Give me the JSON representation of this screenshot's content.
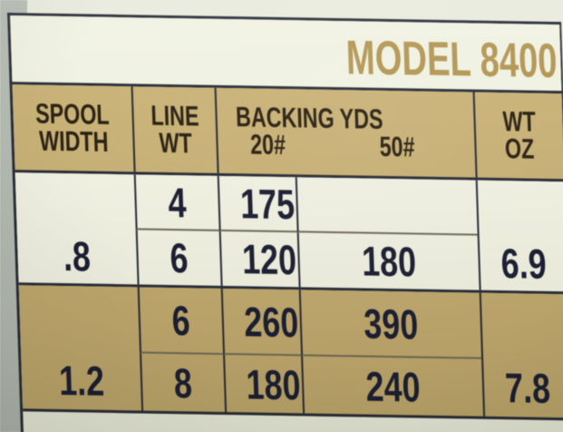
{
  "title": "MODEL 8400",
  "table": {
    "header": {
      "spool": [
        "SPOOL",
        "WIDTH"
      ],
      "line": [
        "LINE",
        "WT"
      ],
      "backing_title": "BACKING YDS",
      "backing_sub": [
        "20#",
        "50#"
      ],
      "wt": [
        "WT",
        "OZ"
      ]
    },
    "groups": [
      {
        "spool_width": ".8",
        "wt_oz": "6.9",
        "rows": [
          {
            "line_wt": "4",
            "backing_20": "175",
            "backing_50": ""
          },
          {
            "line_wt": "6",
            "backing_20": "120",
            "backing_50": "180"
          }
        ]
      },
      {
        "spool_width": "1.2",
        "wt_oz": "7.8",
        "rows": [
          {
            "line_wt": "6",
            "backing_20": "260",
            "backing_50": "390"
          },
          {
            "line_wt": "8",
            "backing_20": "180",
            "backing_50": "240"
          }
        ]
      }
    ]
  },
  "chart_data": {
    "type": "table",
    "title": "MODEL 8400",
    "columns": [
      "SPOOL WIDTH",
      "LINE WT",
      "BACKING YDS 20#",
      "BACKING YDS 50#",
      "WT OZ"
    ],
    "rows": [
      [
        ".8",
        "4",
        "175",
        "",
        "6.9"
      ],
      [
        ".8",
        "6",
        "120",
        "180",
        "6.9"
      ],
      [
        "1.2",
        "6",
        "260",
        "390",
        "7.8"
      ],
      [
        "1.2",
        "8",
        "180",
        "240",
        "7.8"
      ]
    ]
  },
  "colors": {
    "title_gold": "#b29552",
    "header_tan": "#c9b277",
    "group_tan": "#c2aa6e",
    "page_cream": "#eff1e0",
    "border_dark": "#272b36",
    "separator_thin": "#6e6a58",
    "header_ink": "#2b2214",
    "number_ink": "#1b1e33",
    "photo_edge_gray": "#b5bcb3"
  }
}
